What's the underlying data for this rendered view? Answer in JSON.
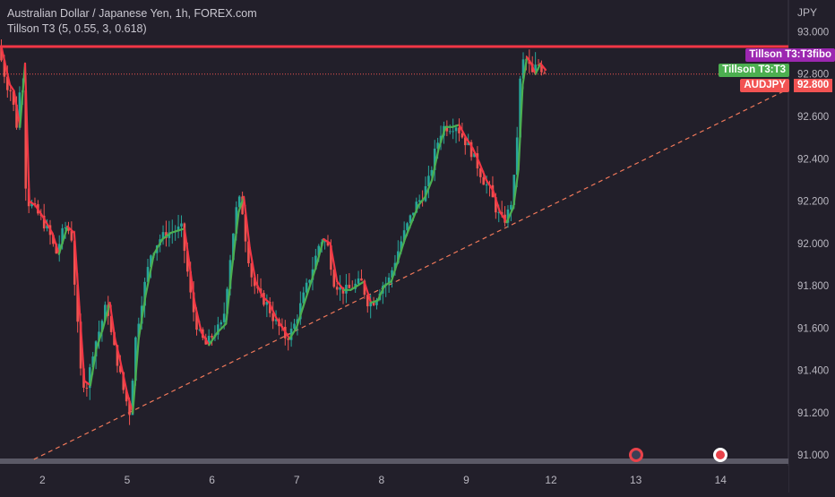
{
  "header": {
    "title": "Australian Dollar / Japanese Yen, 1h, FOREX.com",
    "indicator": "Tillson T3 (5, 0.55, 3, 0.618)"
  },
  "labels": {
    "t3fibo": "Tillson T3:T3fibo",
    "t3": "Tillson T3:T3",
    "symbol": "AUDJPY",
    "last_price": "92.800",
    "currency": "JPY"
  },
  "colors": {
    "background": "#221f2a",
    "bull": "#26a69a",
    "bear": "#ef5350",
    "t3_up": "#4caf50",
    "t3_down": "#f23645",
    "fibo_line": "#f23645",
    "fibo_tag": "#9c27b0",
    "t3_tag": "#4caf50",
    "symbol_tag": "#f25353",
    "trendline": "#f0785a"
  },
  "chart_data": {
    "type": "candlestick",
    "ylim": [
      90.95,
      93.15
    ],
    "yticks": [
      "93.000",
      "92.800",
      "92.600",
      "92.400",
      "92.200",
      "92.000",
      "91.800",
      "91.600",
      "91.400",
      "91.200",
      "91.000"
    ],
    "xticks": [
      {
        "label": "2",
        "x": 0.5
      },
      {
        "label": "5",
        "x": 1.5
      },
      {
        "label": "6",
        "x": 2.5
      },
      {
        "label": "7",
        "x": 3.5
      },
      {
        "label": "8",
        "x": 4.5
      },
      {
        "label": "9",
        "x": 5.5
      },
      {
        "label": "12",
        "x": 6.5
      },
      {
        "label": "13",
        "x": 7.5
      },
      {
        "label": "14",
        "x": 8.5
      }
    ],
    "xlim": [
      0,
      9.3
    ],
    "last_price": 92.8,
    "fibo_level": 92.93,
    "trendline": {
      "from": [
        0.4,
        90.98
      ],
      "to": [
        9.3,
        92.73
      ]
    },
    "events_x": [
      7.5,
      8.5
    ],
    "price_path": [
      [
        0.0,
        92.93
      ],
      [
        0.1,
        92.75
      ],
      [
        0.15,
        92.72
      ],
      [
        0.22,
        92.55
      ],
      [
        0.28,
        92.85
      ],
      [
        0.33,
        92.2
      ],
      [
        0.4,
        92.18
      ],
      [
        0.5,
        92.12
      ],
      [
        0.6,
        92.05
      ],
      [
        0.68,
        91.95
      ],
      [
        0.78,
        92.08
      ],
      [
        0.86,
        92.05
      ],
      [
        0.92,
        91.7
      ],
      [
        0.98,
        91.35
      ],
      [
        1.05,
        91.33
      ],
      [
        1.12,
        91.5
      ],
      [
        1.2,
        91.6
      ],
      [
        1.28,
        91.72
      ],
      [
        1.34,
        91.55
      ],
      [
        1.4,
        91.45
      ],
      [
        1.48,
        91.3
      ],
      [
        1.55,
        91.2
      ],
      [
        1.62,
        91.55
      ],
      [
        1.7,
        91.75
      ],
      [
        1.8,
        91.95
      ],
      [
        1.9,
        92.02
      ],
      [
        2.0,
        92.05
      ],
      [
        2.08,
        92.06
      ],
      [
        2.16,
        92.07
      ],
      [
        2.22,
        91.9
      ],
      [
        2.28,
        91.72
      ],
      [
        2.36,
        91.58
      ],
      [
        2.45,
        91.52
      ],
      [
        2.55,
        91.58
      ],
      [
        2.65,
        91.62
      ],
      [
        2.72,
        91.88
      ],
      [
        2.8,
        92.15
      ],
      [
        2.86,
        92.22
      ],
      [
        2.93,
        91.98
      ],
      [
        3.0,
        91.82
      ],
      [
        3.08,
        91.75
      ],
      [
        3.16,
        91.72
      ],
      [
        3.24,
        91.65
      ],
      [
        3.32,
        91.6
      ],
      [
        3.4,
        91.55
      ],
      [
        3.48,
        91.6
      ],
      [
        3.56,
        91.7
      ],
      [
        3.64,
        91.8
      ],
      [
        3.72,
        91.9
      ],
      [
        3.8,
        92.02
      ],
      [
        3.88,
        92.0
      ],
      [
        3.96,
        91.82
      ],
      [
        4.04,
        91.78
      ],
      [
        4.12,
        91.78
      ],
      [
        4.2,
        91.8
      ],
      [
        4.28,
        91.82
      ],
      [
        4.36,
        91.72
      ],
      [
        4.44,
        91.73
      ],
      [
        4.52,
        91.8
      ],
      [
        4.6,
        91.82
      ],
      [
        4.68,
        91.92
      ],
      [
        4.76,
        92.02
      ],
      [
        4.84,
        92.1
      ],
      [
        4.92,
        92.18
      ],
      [
        5.0,
        92.22
      ],
      [
        5.08,
        92.3
      ],
      [
        5.16,
        92.45
      ],
      [
        5.24,
        92.55
      ],
      [
        5.32,
        92.55
      ],
      [
        5.4,
        92.56
      ],
      [
        5.48,
        92.5
      ],
      [
        5.56,
        92.45
      ],
      [
        5.64,
        92.38
      ],
      [
        5.72,
        92.3
      ],
      [
        5.8,
        92.25
      ],
      [
        5.88,
        92.15
      ],
      [
        5.96,
        92.1
      ],
      [
        6.04,
        92.17
      ],
      [
        6.1,
        92.35
      ],
      [
        6.15,
        92.75
      ],
      [
        6.2,
        92.88
      ],
      [
        6.25,
        92.85
      ],
      [
        6.3,
        92.8
      ],
      [
        6.36,
        92.85
      ],
      [
        6.42,
        92.82
      ]
    ]
  }
}
